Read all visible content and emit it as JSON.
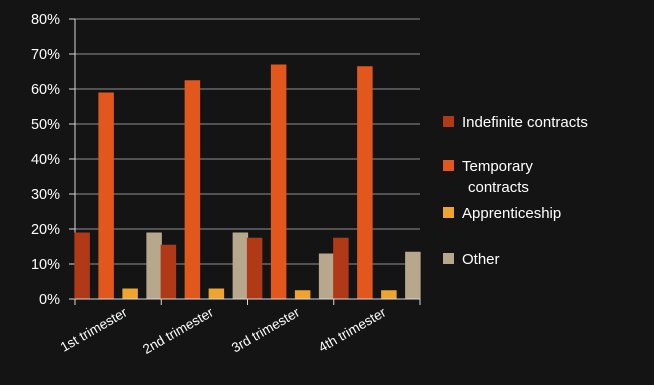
{
  "chart_data": {
    "type": "bar",
    "categories": [
      "1st trimester",
      "2nd trimester",
      "3rd trimester",
      "4th trimester"
    ],
    "series": [
      {
        "name": "Indefinite contracts",
        "values": [
          19,
          15.5,
          17.5,
          17.5
        ],
        "color": "#b03a18"
      },
      {
        "name": "Temporary contracts",
        "values": [
          59,
          62.5,
          67,
          66.5
        ],
        "color": "#e2581c"
      },
      {
        "name": "Apprenticeship",
        "values": [
          3,
          3,
          2.5,
          2.5
        ],
        "color": "#eea42e"
      },
      {
        "name": "Other",
        "values": [
          19,
          19,
          13,
          13.5
        ],
        "color": "#b7a78c"
      }
    ],
    "y_ticks": [
      "0%",
      "10%",
      "20%",
      "30%",
      "40%",
      "50%",
      "60%",
      "70%",
      "80%"
    ],
    "ylim": [
      0,
      80
    ],
    "y_unit": "%",
    "grid": true,
    "legend_position": "right",
    "title": "",
    "xlabel": "",
    "ylabel": ""
  },
  "colors": {
    "background": "#141414",
    "gridline": "#8f8f8f",
    "axis": "#d9d9d9",
    "text": "#ffffff"
  }
}
